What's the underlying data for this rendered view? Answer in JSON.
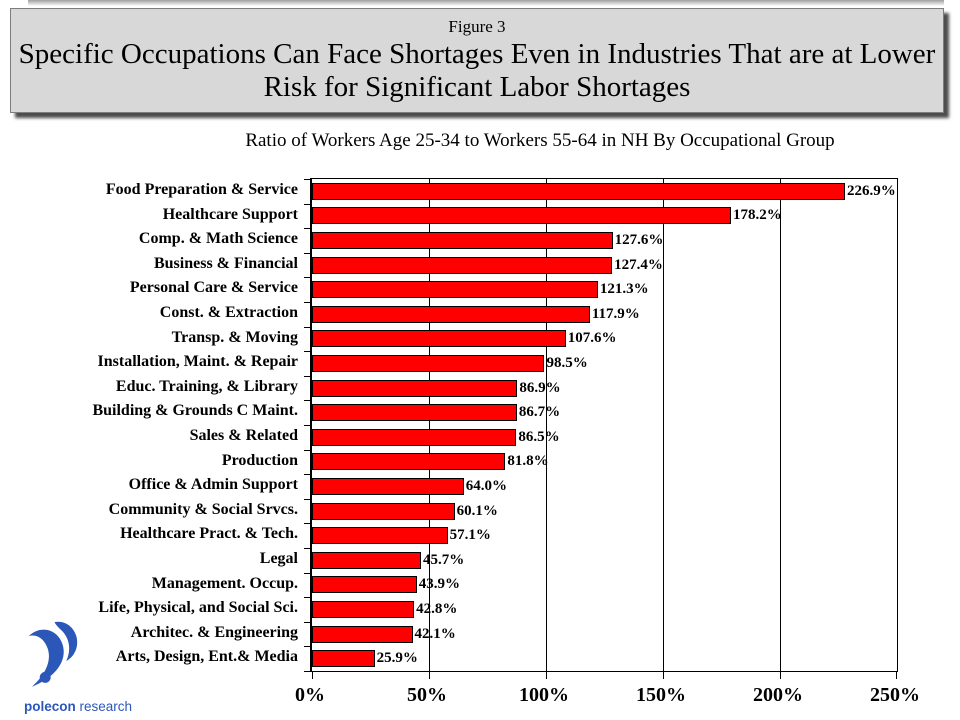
{
  "header": {
    "figure_label": "Figure 3",
    "title": "Specific Occupations Can Face Shortages Even in Industries That are at Lower Risk for Significant Labor Shortages",
    "subtitle": "Ratio of Workers Age 25-34 to Workers 55-64 in NH By Occupational Group"
  },
  "chart_data": {
    "type": "bar",
    "orientation": "horizontal",
    "title": "Ratio of Workers Age 25-34 to Workers 55-64 in NH By Occupational Group",
    "categories": [
      "Food Preparation & Service",
      "Healthcare Support",
      "Comp. & Math Science",
      "Business & Financial",
      "Personal Care & Service",
      "Const. & Extraction",
      "Transp. & Moving",
      "Installation, Maint. & Repair",
      "Educ. Training, & Library",
      "Building & Grounds C Maint.",
      "Sales & Related",
      "Production",
      "Office & Admin Support",
      "Community & Social Srvcs.",
      "Healthcare Pract. & Tech.",
      "Legal",
      "Management. Occup.",
      "Life, Physical, and Social Sci.",
      "Architec. & Engineering",
      "Arts, Design, Ent.& Media"
    ],
    "values": [
      226.9,
      178.2,
      127.6,
      127.4,
      121.3,
      117.9,
      107.6,
      98.5,
      86.9,
      86.7,
      86.5,
      81.8,
      64.0,
      60.1,
      57.1,
      45.7,
      43.9,
      42.8,
      42.1,
      25.9
    ],
    "value_labels": [
      "226.9%",
      "178.2%",
      "127.6%",
      "127.4%",
      "121.3%",
      "117.9%",
      "107.6%",
      "98.5%",
      "86.9%",
      "86.7%",
      "86.5%",
      "81.8%",
      "64.0%",
      "60.1%",
      "57.1%",
      "45.7%",
      "43.9%",
      "42.8%",
      "42.1%",
      "25.9%"
    ],
    "xlim": [
      0,
      250
    ],
    "x_tick_values": [
      0,
      50,
      100,
      150,
      200,
      250
    ],
    "x_tick_labels": [
      "0%",
      "50%",
      "100%",
      "150%",
      "200%",
      "250%"
    ],
    "grid": true,
    "legend": "none",
    "bar_color": "#ff0000",
    "bar_border_color": "#000000"
  },
  "logo": {
    "name_bold": "polecon",
    "name_light": " research",
    "color": "#2b57b8"
  },
  "colors": {
    "title_box_bg": "#d8d8d8",
    "title_box_shadow": "#4c4c4c",
    "bar": "#ff0000"
  }
}
